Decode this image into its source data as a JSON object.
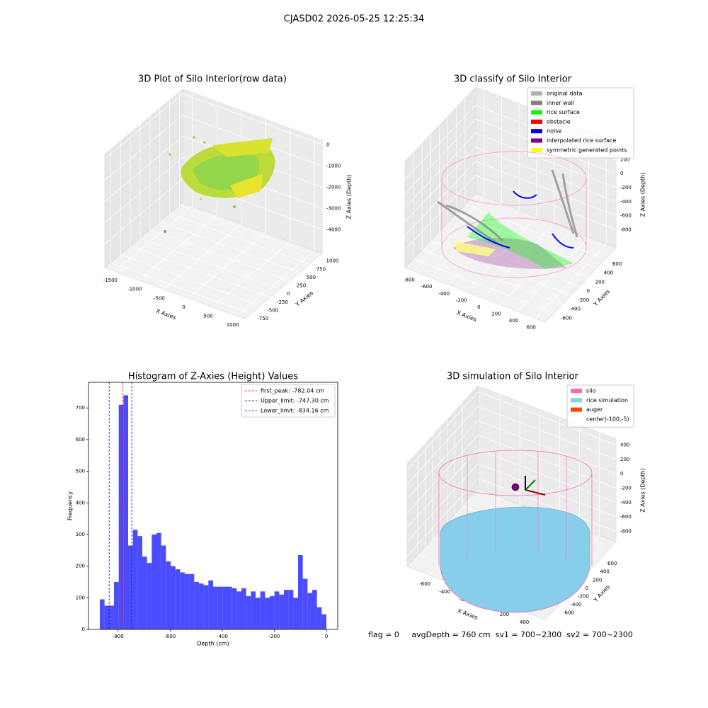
{
  "suptitle": "CJASD02 2026-05-25 12:25:34",
  "footer": "flag = 0     avgDepth = 760 cm  sv1 = 700~2300  sv2 = 700~2300",
  "chart_data": [
    {
      "type": "scatter3d",
      "title": "3D Plot of Silo Interior(row data)",
      "xlabel": "X Axies",
      "ylabel": "Y Axies",
      "zlabel": "Z Axies (Depth)",
      "xlim": [
        -1700,
        1150
      ],
      "ylim": [
        -900,
        1080
      ],
      "zlim": [
        -5120,
        213
      ],
      "xticks": [
        -1500,
        -1000,
        -500,
        0,
        500,
        1000
      ],
      "yticks": [
        -750,
        -500,
        -250,
        0,
        250,
        500,
        750,
        1000
      ],
      "zticks": [
        0,
        -1000,
        -2000,
        -3000,
        -4000
      ]
    },
    {
      "type": "scatter3d",
      "title": "3D classify of Silo Interior",
      "xlabel": "X Axies",
      "ylabel": "Y Axies",
      "zlabel": "Z Axies (Depth)",
      "xlim": [
        -897,
        712
      ],
      "ylim": [
        -797,
        847
      ],
      "zlim": [
        -1058,
        457
      ],
      "xticks": [
        -800,
        -600,
        -400,
        -200,
        0,
        200,
        400,
        600
      ],
      "yticks": [
        -600,
        -400,
        -200,
        0,
        200,
        400,
        600
      ],
      "zticks": [
        200,
        0,
        -200,
        -400,
        -600,
        -800
      ],
      "legend_loc": "upper right",
      "series": [
        {
          "name": "original data",
          "color": "#b0b0b0"
        },
        {
          "name": "inner wall",
          "color": "#808080"
        },
        {
          "name": "rice surface",
          "color": "#00ff00"
        },
        {
          "name": "obstacle",
          "color": "#ff0000"
        },
        {
          "name": "noise",
          "color": "#0000ff"
        },
        {
          "name": "interpolated rice surface",
          "color": "#800080"
        },
        {
          "name": "symmetric generated points",
          "color": "#ffff00"
        }
      ]
    },
    {
      "type": "histogram",
      "title": "Histogram of Z-Axies (Height) Values",
      "xlabel": "Depth (cm)",
      "ylabel": "Frequency",
      "color": "#0000ff",
      "alpha": 0.7,
      "bins": [
        -870,
        -851.875,
        -833.75,
        -815.625,
        -797.5,
        -779.375,
        -761.25,
        -743.125,
        -725,
        -706.875,
        -688.75,
        -670.625,
        -652.5,
        -634.375,
        -616.25,
        -598.125,
        -580,
        -561.875,
        -543.75,
        -525.625,
        -507.5,
        -489.375,
        -471.25,
        -453.125,
        -435,
        -416.875,
        -398.75,
        -380.625,
        -362.5,
        -344.375,
        -326.25,
        -308.125,
        -290,
        -271.875,
        -253.75,
        -235.625,
        -217.5,
        -199.375,
        -181.25,
        -163.125,
        -145,
        -126.875,
        -108.75,
        -90.625,
        -72.5,
        -54.375,
        -36.25,
        -18.125,
        0
      ],
      "values": [
        95,
        75,
        75,
        150,
        710,
        740,
        265,
        315,
        295,
        230,
        210,
        300,
        305,
        265,
        215,
        200,
        190,
        180,
        175,
        175,
        150,
        145,
        140,
        155,
        135,
        135,
        135,
        135,
        130,
        120,
        130,
        105,
        120,
        100,
        120,
        100,
        105,
        120,
        110,
        125,
        125,
        100,
        235,
        160,
        115,
        125,
        70,
        48
      ],
      "xlim": [
        -913.5,
        43.5
      ],
      "ylim": [
        0,
        781
      ],
      "xticks": [
        -800,
        -600,
        -400,
        -200,
        0
      ],
      "yticks": [
        0,
        100,
        200,
        300,
        400,
        500,
        600,
        700
      ],
      "legend_loc": "upper right",
      "vlines": [
        {
          "name": "first_peak: -782.04 cm",
          "value": -782.04,
          "color": "#ff0000"
        },
        {
          "name": "Upper_limit: -747.30 cm",
          "value": -747.3,
          "color": "#0000ff"
        },
        {
          "name": "Lower_limit: -834.16 cm",
          "value": -834.16,
          "color": "#0000ff"
        }
      ]
    },
    {
      "type": "scatter3d",
      "title": "3D simulation of Silo Interior",
      "xlabel": "X Axies",
      "ylabel": "Y Axies",
      "zlabel": "Z Axies (Depth)",
      "xlim": [
        -822,
        567
      ],
      "ylim": [
        -886,
        1019
      ],
      "zlim": [
        -943,
        485
      ],
      "xticks": [
        -600,
        -400,
        -200,
        0,
        200,
        400
      ],
      "yticks": [
        -600,
        -400,
        -200,
        0,
        200,
        400,
        600
      ],
      "zticks": [
        400,
        200,
        0,
        -200,
        -400,
        -600,
        -800
      ],
      "legend_loc": "upper right",
      "series": [
        {
          "name": "silo",
          "color": "#ff69b4"
        },
        {
          "name": "rice simulation",
          "color": "#87ceeb"
        },
        {
          "name": "auger",
          "color": "#ff4500"
        },
        {
          "name": "center(-100,-5)"
        }
      ]
    }
  ]
}
